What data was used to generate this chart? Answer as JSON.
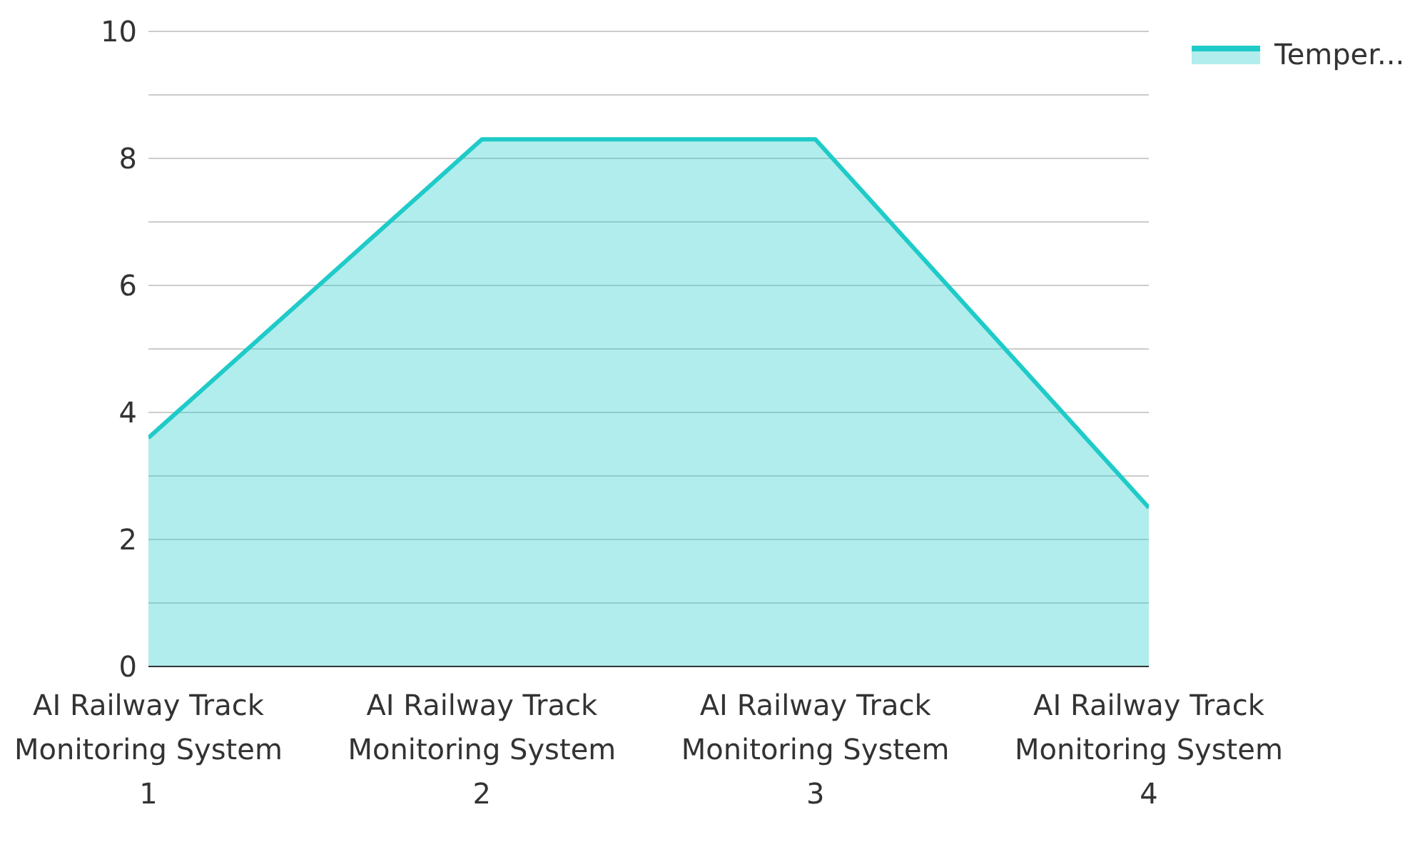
{
  "chart_data": {
    "type": "area",
    "categories": [
      "AI Railway Track Monitoring System 1",
      "AI Railway Track Monitoring System 2",
      "AI Railway Track Monitoring System 3",
      "AI Railway Track Monitoring System 4"
    ],
    "series": [
      {
        "name": "Temper...",
        "color": "#1fcbc8",
        "values": [
          3.6,
          8.3,
          8.3,
          2.5
        ]
      }
    ],
    "ylim": [
      0,
      10
    ],
    "yticks": [
      0,
      {
        "value": 1,
        "label": null
      },
      2,
      {
        "value": 3,
        "label": null
      },
      4,
      {
        "value": 5,
        "label": null
      },
      6,
      {
        "value": 7,
        "label": null
      },
      8,
      {
        "value": 9,
        "label": null
      },
      10
    ],
    "grid": "y",
    "legend": "top right"
  }
}
